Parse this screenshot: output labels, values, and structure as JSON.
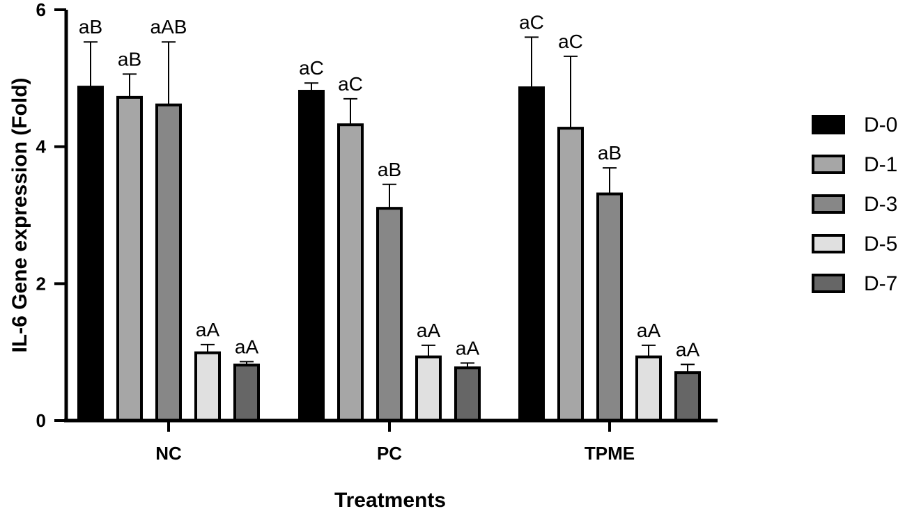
{
  "chart_data": {
    "type": "bar",
    "title": "",
    "xlabel": "Treatments",
    "ylabel": "IL-6 Gene expression (Fold)",
    "ylim": [
      0,
      6
    ],
    "yticks": [
      "0",
      "2",
      "4",
      "6"
    ],
    "categories": [
      "NC",
      "PC",
      "TPME"
    ],
    "legend_position": "right",
    "grid": false,
    "series": [
      {
        "name": "D-0",
        "color": "#000000",
        "values": [
          4.87,
          4.81,
          4.86
        ],
        "errors": [
          0.66,
          0.12,
          0.74
        ],
        "labels": [
          "aB",
          "aC",
          "aC"
        ]
      },
      {
        "name": "D-1",
        "color": "#a6a6a6",
        "values": [
          4.72,
          4.32,
          4.27
        ],
        "errors": [
          0.34,
          0.38,
          1.05
        ],
        "labels": [
          "aB",
          "aC",
          "aC"
        ]
      },
      {
        "name": "D-3",
        "color": "#878787",
        "values": [
          4.61,
          3.1,
          3.31
        ],
        "errors": [
          0.92,
          0.35,
          0.38
        ],
        "labels": [
          "aAB",
          "aB",
          "aB"
        ]
      },
      {
        "name": "D-5",
        "color": "#e0e0e0",
        "values": [
          0.99,
          0.93,
          0.93
        ],
        "errors": [
          0.12,
          0.17,
          0.17
        ],
        "labels": [
          "aA",
          "aA",
          "aA"
        ]
      },
      {
        "name": "D-7",
        "color": "#666666",
        "values": [
          0.81,
          0.77,
          0.7
        ],
        "errors": [
          0.05,
          0.07,
          0.12
        ],
        "labels": [
          "aA",
          "aA",
          "aA"
        ]
      }
    ]
  }
}
